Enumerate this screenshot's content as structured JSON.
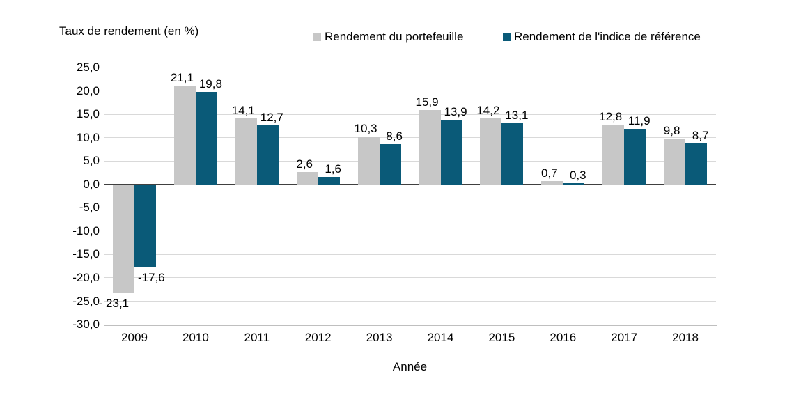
{
  "title": "Taux de rendement (en %)",
  "colors": {
    "portfolio": "#c7c7c7",
    "benchmark": "#0a5a78",
    "gridline": "#d9d9d9",
    "zero_line": "#404040",
    "plot_border": "#bfbfbf"
  },
  "chart_data": {
    "type": "bar",
    "title": "Taux de rendement (en %)",
    "xlabel": "Année",
    "ylabel": "Taux de rendement (en %)",
    "ylim": [
      -30,
      25
    ],
    "ytick_step": 5,
    "ytick_labels": [
      "25,0",
      "20,0",
      "15,0",
      "10,0",
      "5,0",
      "0,0",
      "-5,0",
      "-10,0",
      "-15,0",
      "-20,0",
      "-25,0",
      "-30,0"
    ],
    "ytick_values": [
      25,
      20,
      15,
      10,
      5,
      0,
      -5,
      -10,
      -15,
      -20,
      -25,
      -30
    ],
    "grid": true,
    "legend_position": "top",
    "categories": [
      "2009",
      "2010",
      "2011",
      "2012",
      "2013",
      "2014",
      "2015",
      "2016",
      "2017",
      "2018"
    ],
    "series": [
      {
        "name": "Rendement du portefeuille",
        "color": "#c7c7c7",
        "values": [
          -23.1,
          21.1,
          14.1,
          2.6,
          10.3,
          15.9,
          14.2,
          0.7,
          12.8,
          9.8
        ],
        "labels": [
          "- 23,1",
          "21,1",
          "14,1",
          "2,6",
          "10,3",
          "15,9",
          "14,2",
          "0,7",
          "12,8",
          "9,8"
        ]
      },
      {
        "name": "Rendement de l'indice de référence",
        "color": "#0a5a78",
        "values": [
          -17.6,
          19.8,
          12.7,
          1.6,
          8.6,
          13.9,
          13.1,
          0.3,
          11.9,
          8.7
        ],
        "labels": [
          "-17,6",
          "19,8",
          "12,7",
          "1,6",
          "8,6",
          "13,9",
          "13,1",
          "0,3",
          "11,9",
          "8,7"
        ]
      }
    ]
  }
}
